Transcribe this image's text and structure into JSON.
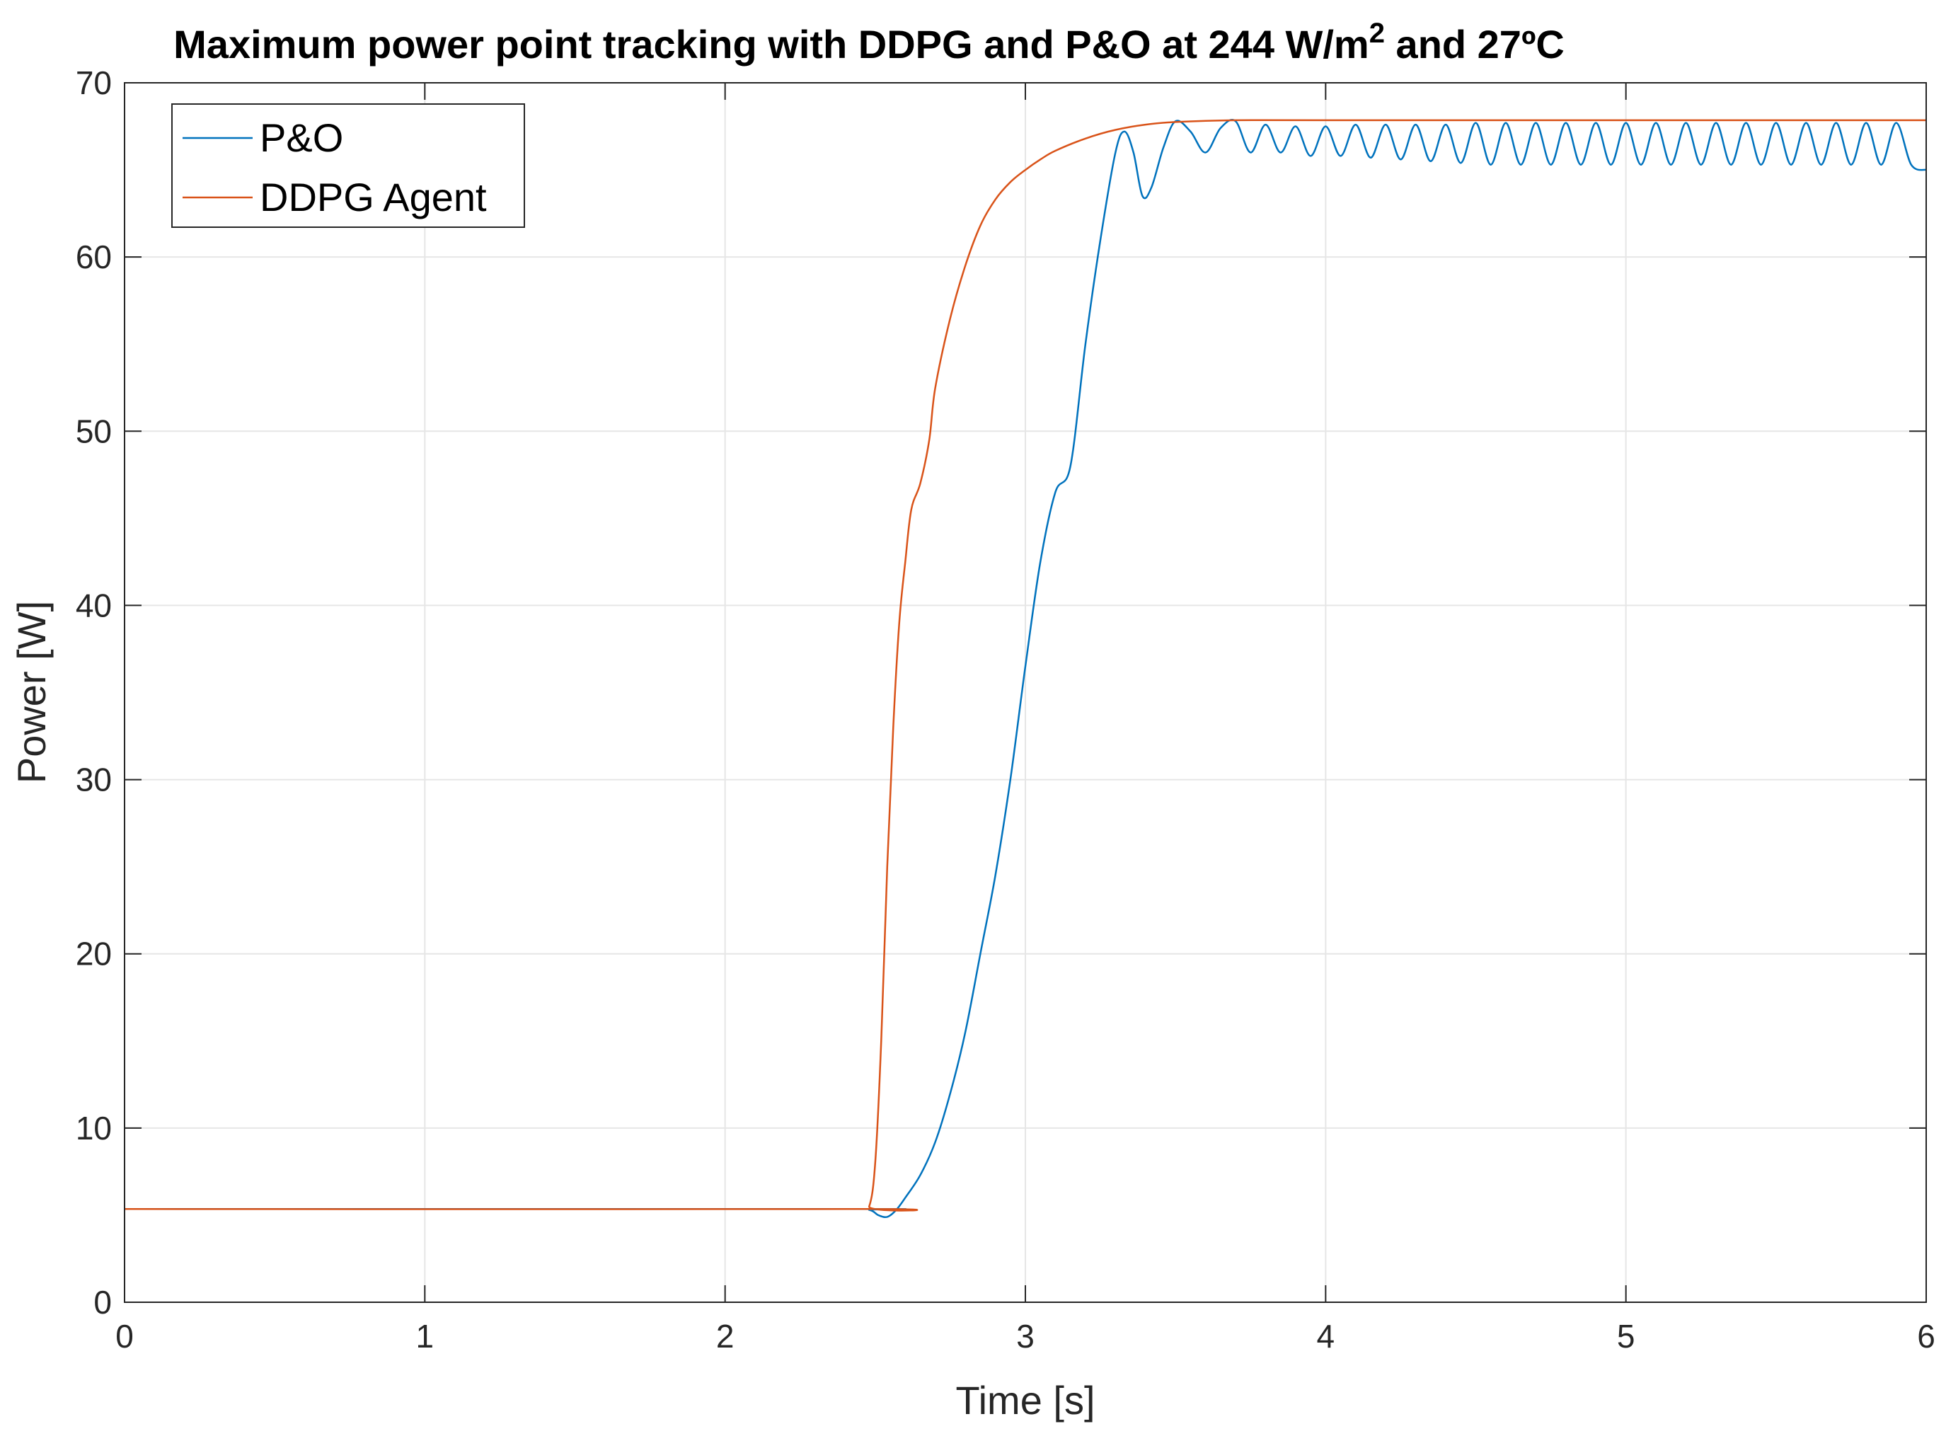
{
  "chart_data": {
    "type": "line",
    "title": {
      "main": "Maximum power point tracking with DDPG and P&O at 244 W/m",
      "superscript": "2",
      "suffix": " and 27ºC"
    },
    "xlabel": "Time [s]",
    "ylabel": "Power [W]",
    "xlim": [
      0,
      6
    ],
    "ylim": [
      0,
      70
    ],
    "xticks": [
      0,
      1,
      2,
      3,
      4,
      5,
      6
    ],
    "yticks": [
      0,
      10,
      20,
      30,
      40,
      50,
      60,
      70
    ],
    "grid": true,
    "legend_position": "top-left",
    "series": [
      {
        "name": "P&O",
        "color": "#0072BD",
        "points": [
          [
            0,
            5.35
          ],
          [
            2.4,
            5.35
          ],
          [
            2.48,
            5.3
          ],
          [
            2.51,
            5.0
          ],
          [
            2.54,
            4.9
          ],
          [
            2.57,
            5.3
          ],
          [
            2.6,
            6.0
          ],
          [
            2.65,
            7.3
          ],
          [
            2.7,
            9.2
          ],
          [
            2.75,
            12.0
          ],
          [
            2.8,
            15.5
          ],
          [
            2.85,
            20.0
          ],
          [
            2.9,
            24.5
          ],
          [
            2.95,
            30.0
          ],
          [
            3.0,
            36.5
          ],
          [
            3.05,
            42.5
          ],
          [
            3.1,
            46.5
          ],
          [
            3.15,
            48.0
          ],
          [
            3.2,
            55.0
          ],
          [
            3.25,
            61.0
          ],
          [
            3.3,
            66.0
          ],
          [
            3.33,
            67.2
          ],
          [
            3.36,
            66.0
          ],
          [
            3.39,
            63.5
          ],
          [
            3.42,
            64.0
          ],
          [
            3.46,
            66.3
          ],
          [
            3.5,
            67.8
          ],
          [
            3.55,
            67.2
          ],
          [
            3.6,
            66.0
          ],
          [
            3.65,
            67.4
          ],
          [
            3.7,
            67.8
          ],
          [
            3.75,
            66.0
          ],
          [
            3.8,
            67.6
          ],
          [
            3.85,
            66.0
          ],
          [
            3.9,
            67.5
          ],
          [
            3.95,
            65.8
          ],
          [
            4.0,
            67.5
          ],
          [
            4.05,
            65.8
          ],
          [
            4.1,
            67.6
          ],
          [
            4.15,
            65.7
          ],
          [
            4.2,
            67.6
          ],
          [
            4.25,
            65.6
          ],
          [
            4.3,
            67.6
          ],
          [
            4.35,
            65.5
          ],
          [
            4.4,
            67.6
          ],
          [
            4.45,
            65.4
          ],
          [
            4.5,
            67.7
          ],
          [
            4.55,
            65.3
          ],
          [
            4.6,
            67.7
          ],
          [
            4.65,
            65.3
          ],
          [
            4.7,
            67.7
          ],
          [
            4.75,
            65.3
          ],
          [
            4.8,
            67.7
          ],
          [
            4.85,
            65.3
          ],
          [
            4.9,
            67.7
          ],
          [
            4.95,
            65.3
          ],
          [
            5.0,
            67.7
          ],
          [
            5.05,
            65.3
          ],
          [
            5.1,
            67.7
          ],
          [
            5.15,
            65.3
          ],
          [
            5.2,
            67.7
          ],
          [
            5.25,
            65.3
          ],
          [
            5.3,
            67.7
          ],
          [
            5.35,
            65.3
          ],
          [
            5.4,
            67.7
          ],
          [
            5.45,
            65.3
          ],
          [
            5.5,
            67.7
          ],
          [
            5.55,
            65.3
          ],
          [
            5.6,
            67.7
          ],
          [
            5.65,
            65.3
          ],
          [
            5.7,
            67.7
          ],
          [
            5.75,
            65.3
          ],
          [
            5.8,
            67.7
          ],
          [
            5.85,
            65.3
          ],
          [
            5.9,
            67.7
          ],
          [
            5.95,
            65.3
          ],
          [
            6.0,
            65.0
          ]
        ]
      },
      {
        "name": "DDPG Agent",
        "color": "#D95319",
        "points": [
          [
            0,
            5.35
          ],
          [
            2.45,
            5.35
          ],
          [
            2.48,
            5.5
          ],
          [
            2.5,
            8.0
          ],
          [
            2.52,
            15.0
          ],
          [
            2.54,
            25.0
          ],
          [
            2.56,
            33.0
          ],
          [
            2.58,
            39.0
          ],
          [
            2.6,
            42.5
          ],
          [
            2.62,
            45.5
          ],
          [
            2.65,
            47.0
          ],
          [
            2.68,
            49.5
          ],
          [
            2.7,
            52.5
          ],
          [
            2.75,
            56.5
          ],
          [
            2.8,
            59.5
          ],
          [
            2.85,
            61.8
          ],
          [
            2.9,
            63.3
          ],
          [
            2.95,
            64.3
          ],
          [
            3.0,
            65.0
          ],
          [
            3.05,
            65.6
          ],
          [
            3.1,
            66.1
          ],
          [
            3.2,
            66.8
          ],
          [
            3.3,
            67.3
          ],
          [
            3.4,
            67.6
          ],
          [
            3.5,
            67.75
          ],
          [
            3.7,
            67.85
          ],
          [
            4.0,
            67.85
          ],
          [
            5.0,
            67.85
          ],
          [
            6.0,
            67.85
          ]
        ]
      }
    ]
  }
}
